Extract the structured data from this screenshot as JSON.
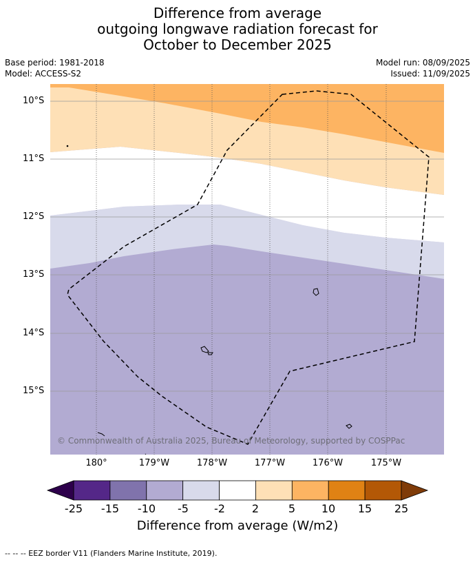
{
  "title": {
    "line1": "Difference from average",
    "line2": "outgoing longwave radiation forecast for",
    "line3": "October to December 2025"
  },
  "meta": {
    "base_period": "Base period: 1981-2018",
    "model": "Model: ACCESS-S2",
    "model_run": "Model run: 08/09/2025",
    "issued": "Issued: 11/09/2025"
  },
  "map": {
    "lat_labels": [
      "10°S",
      "11°S",
      "12°S",
      "13°S",
      "14°S",
      "15°S"
    ],
    "lon_labels": [
      "180°",
      "179°W",
      "178°W",
      "177°W",
      "176°W",
      "175°W"
    ],
    "copyright": "© Commonwealth of Australia 2025, Bureau of Meteorology, supported by COSPPac",
    "eez_line_style": "dashed black",
    "shading_colors_top_to_bottom": [
      "#fdb462",
      "#fee0b6",
      "#ffffff",
      "#d8daeb",
      "#b2abd2"
    ]
  },
  "colorbar": {
    "ticks": [
      "-25",
      "-15",
      "-10",
      "-5",
      "-2",
      "2",
      "5",
      "10",
      "15",
      "25"
    ],
    "colors": [
      "#542788",
      "#8073ac",
      "#b2abd2",
      "#d8daeb",
      "#ffffff",
      "#fee0b6",
      "#fdb462",
      "#e08214",
      "#b35806"
    ],
    "extend_low_color": "#2d004b",
    "extend_high_color": "#7f3b08",
    "label": "Difference from average (W/m2)"
  },
  "footer": "--  --  -- EEZ border V11 (Flanders Marine Institute, 2019)."
}
